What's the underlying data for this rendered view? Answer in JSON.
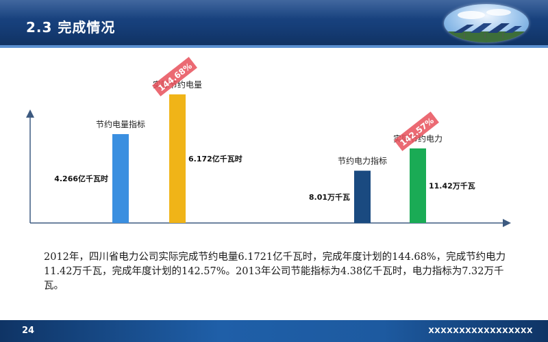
{
  "header": {
    "title": "2.3 完成情况",
    "photo_icon": "solar-panels-photo"
  },
  "chart_data": [
    {
      "type": "bar",
      "categories": [
        "节约电量指标",
        "实际节约电量"
      ],
      "values": [
        4.266,
        6.172
      ],
      "value_labels": [
        "4.266亿千瓦时",
        "6.172亿千瓦时"
      ],
      "colors": [
        "#3a8fe0",
        "#f0b418"
      ],
      "stamp": {
        "text": "144.68%",
        "color": "#e8505b"
      }
    },
    {
      "type": "bar",
      "categories": [
        "节约电力指标",
        "实际节约电力"
      ],
      "values": [
        8.01,
        11.42
      ],
      "value_labels": [
        "8.01万千瓦",
        "11.42万千瓦"
      ],
      "colors": [
        "#1a4a80",
        "#1aab55"
      ],
      "stamp": {
        "text": "142.57%",
        "color": "#e8505b"
      }
    }
  ],
  "caption": "2012年，四川省电力公司实际完成节约电量6.1721亿千瓦时，完成年度计划的144.68%，完成节约电力11.42万千瓦，完成年度计划的142.57%。2013年公司节能指标为4.38亿千瓦时，电力指标为7.32万千瓦。",
  "footer": {
    "page_number": "24",
    "text": "XXXXXXXXXXXXXXXXX"
  }
}
